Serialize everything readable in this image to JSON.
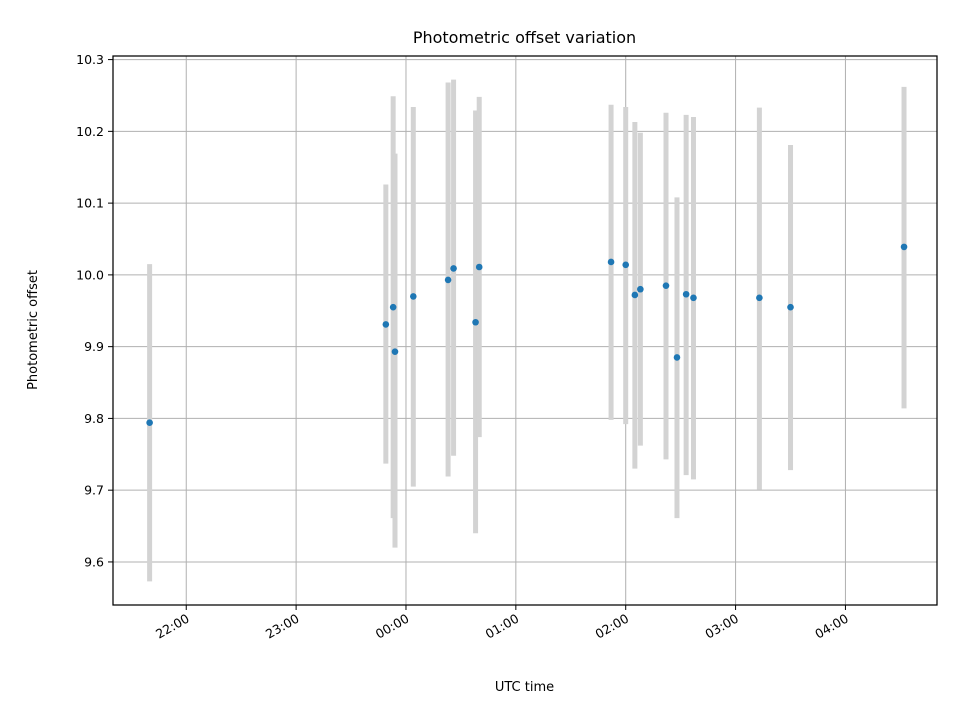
{
  "chart_data": {
    "type": "scatter",
    "title": "Photometric offset variation",
    "xlabel": "UTC time",
    "ylabel": "Photometric offset",
    "x_axis_type": "time",
    "xlim": [
      "21:20",
      "04:50"
    ],
    "ylim": [
      9.54,
      10.305
    ],
    "grid": true,
    "marker_color": "#1f77b4",
    "errorbar_color": "#d3d3d3",
    "x_ticks": [
      "22:00",
      "23:00",
      "00:00",
      "01:00",
      "02:00",
      "03:00",
      "04:00"
    ],
    "y_ticks": [
      "9.6",
      "9.7",
      "9.8",
      "9.9",
      "10.0",
      "10.1",
      "10.2",
      "10.3"
    ],
    "y_tick_values": [
      9.6,
      9.7,
      9.8,
      9.9,
      10.0,
      10.1,
      10.2,
      10.3
    ],
    "points": [
      {
        "x": "21:40",
        "y": 9.794,
        "ylow": 9.573,
        "yhigh": 10.015
      },
      {
        "x": "23:49",
        "y": 9.931,
        "ylow": 9.737,
        "yhigh": 10.126
      },
      {
        "x": "23:53",
        "y": 9.955,
        "ylow": 9.661,
        "yhigh": 10.249
      },
      {
        "x": "23:54",
        "y": 9.893,
        "ylow": 9.62,
        "yhigh": 10.169
      },
      {
        "x": "00:04",
        "y": 9.97,
        "ylow": 9.705,
        "yhigh": 10.234
      },
      {
        "x": "00:23",
        "y": 9.993,
        "ylow": 9.719,
        "yhigh": 10.268
      },
      {
        "x": "00:26",
        "y": 10.009,
        "ylow": 9.748,
        "yhigh": 10.272
      },
      {
        "x": "00:38",
        "y": 9.934,
        "ylow": 9.64,
        "yhigh": 10.229
      },
      {
        "x": "00:40",
        "y": 10.011,
        "ylow": 9.774,
        "yhigh": 10.248
      },
      {
        "x": "01:52",
        "y": 10.018,
        "ylow": 9.798,
        "yhigh": 10.237
      },
      {
        "x": "02:00",
        "y": 10.014,
        "ylow": 9.792,
        "yhigh": 10.234
      },
      {
        "x": "02:05",
        "y": 9.972,
        "ylow": 9.73,
        "yhigh": 10.213
      },
      {
        "x": "02:08",
        "y": 9.98,
        "ylow": 9.762,
        "yhigh": 10.198
      },
      {
        "x": "02:22",
        "y": 9.985,
        "ylow": 9.743,
        "yhigh": 10.226
      },
      {
        "x": "02:28",
        "y": 9.885,
        "ylow": 9.661,
        "yhigh": 10.108
      },
      {
        "x": "02:33",
        "y": 9.973,
        "ylow": 9.721,
        "yhigh": 10.223
      },
      {
        "x": "02:37",
        "y": 9.968,
        "ylow": 9.715,
        "yhigh": 10.22
      },
      {
        "x": "03:13",
        "y": 9.968,
        "ylow": 9.701,
        "yhigh": 10.233
      },
      {
        "x": "03:30",
        "y": 9.955,
        "ylow": 9.728,
        "yhigh": 10.181
      },
      {
        "x": "04:32",
        "y": 10.039,
        "ylow": 9.814,
        "yhigh": 10.262
      }
    ]
  }
}
